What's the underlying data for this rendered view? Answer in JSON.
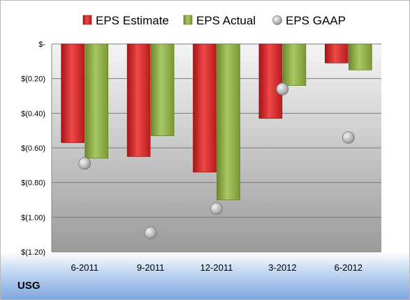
{
  "company": "USG",
  "colors": {
    "estimate": "#d42a2a",
    "actual": "#8fb043",
    "gaap": "#b9b9b9"
  },
  "chart_data": {
    "type": "bar",
    "categories": [
      "6-2011",
      "9-2011",
      "12-2011",
      "3-2012",
      "6-2012"
    ],
    "series": [
      {
        "name": "EPS Estimate",
        "values": [
          -0.57,
          -0.65,
          -0.74,
          -0.43,
          -0.11
        ]
      },
      {
        "name": "EPS Actual",
        "values": [
          -0.66,
          -0.53,
          -0.9,
          -0.24,
          -0.15
        ]
      },
      {
        "name": "EPS GAAP",
        "type": "scatter",
        "values": [
          -0.69,
          -1.09,
          -0.95,
          -0.26,
          -0.54
        ]
      }
    ],
    "yticks": [
      0,
      -0.2,
      -0.4,
      -0.6,
      -0.8,
      -1.0,
      -1.2
    ],
    "ytick_labels": [
      "$-",
      "$(0.20)",
      "$(0.40)",
      "$(0.60)",
      "$(0.80)",
      "$(1.00)",
      "$(1.20)"
    ],
    "ylim": [
      -1.2,
      0
    ],
    "grid": true,
    "legend_position": "top"
  }
}
